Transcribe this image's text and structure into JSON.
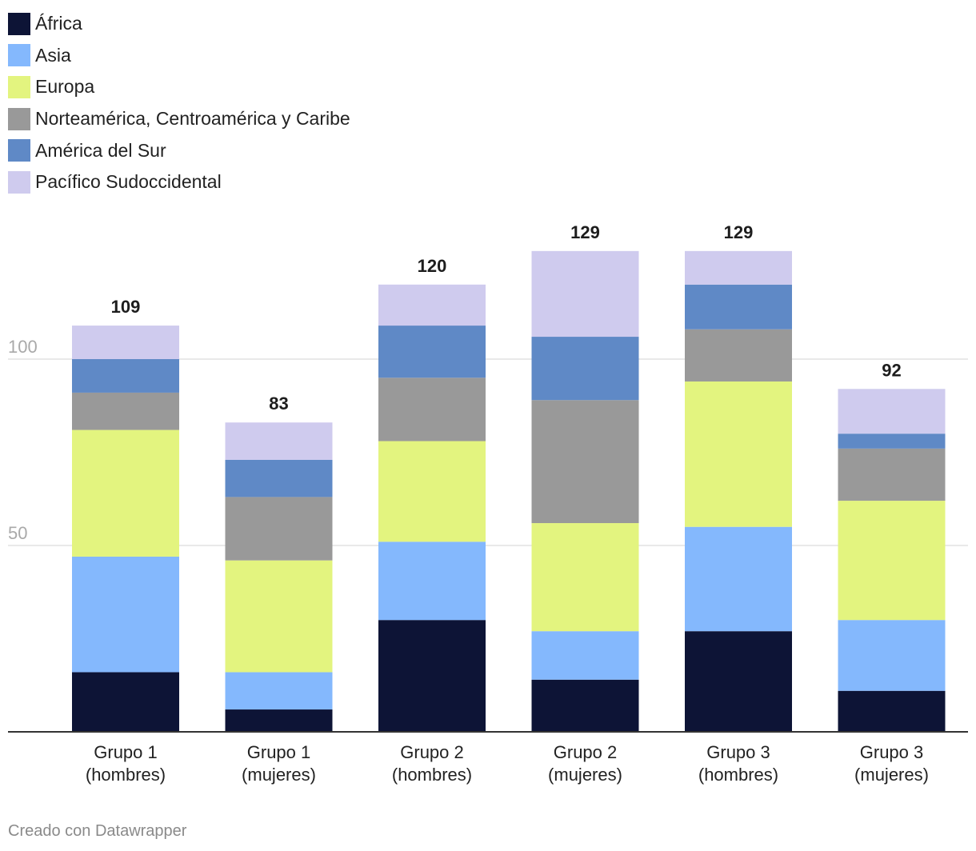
{
  "chart_data": {
    "type": "bar",
    "stacked": true,
    "title": "",
    "xlabel": "",
    "ylabel": "",
    "ylim": [
      0,
      130
    ],
    "yticks": [
      50,
      100
    ],
    "grid": true,
    "legend_position": "top-left",
    "categories": [
      [
        "Grupo 1",
        "(hombres)"
      ],
      [
        "Grupo 1",
        "(mujeres)"
      ],
      [
        "Grupo 2",
        "(hombres)"
      ],
      [
        "Grupo 2",
        "(mujeres)"
      ],
      [
        "Grupo 3",
        "(hombres)"
      ],
      [
        "Grupo 3",
        "(mujeres)"
      ]
    ],
    "series": [
      {
        "name": "África",
        "color": "#0d1436",
        "values": [
          16,
          6,
          30,
          14,
          27,
          11
        ]
      },
      {
        "name": "Asia",
        "color": "#84b8fd",
        "values": [
          31,
          10,
          21,
          13,
          28,
          19
        ]
      },
      {
        "name": "Europa",
        "color": "#e3f47f",
        "values": [
          34,
          30,
          27,
          29,
          39,
          32
        ]
      },
      {
        "name": "Norteamérica, Centroamérica y Caribe",
        "color": "#999999",
        "values": [
          10,
          17,
          17,
          33,
          14,
          14
        ]
      },
      {
        "name": "América del Sur",
        "color": "#5f89c6",
        "values": [
          9,
          10,
          14,
          17,
          12,
          4
        ]
      },
      {
        "name": "Pacífico Sudoccidental",
        "color": "#cfcbee",
        "values": [
          9,
          10,
          11,
          23,
          9,
          12
        ]
      }
    ],
    "totals": [
      109,
      83,
      120,
      129,
      129,
      92
    ]
  },
  "credit": "Creado con Datawrapper"
}
